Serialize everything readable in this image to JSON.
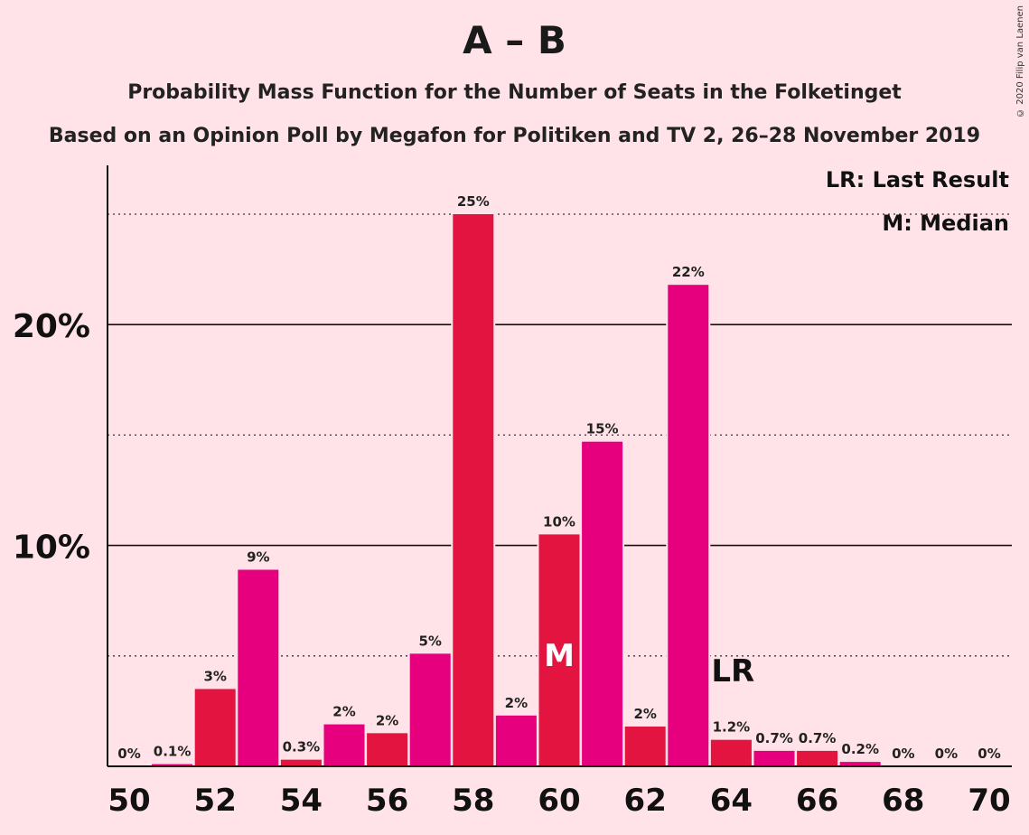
{
  "title": "A – B",
  "subtitle": "Probability Mass Function for the Number of Seats in the Folketinget",
  "subtitle2": "Based on an Opinion Poll by Megafon for Politiken and TV 2, 26–28 November 2019",
  "copyright": "© 2020 Filip van Laenen",
  "legend": {
    "last_result": "LR: Last Result",
    "median": "M: Median"
  },
  "colors": {
    "background": "#FFE3E8",
    "bar_a": "#E31440",
    "bar_b": "#E6007E",
    "text": "#222222"
  },
  "chart_data": {
    "type": "bar",
    "x": [
      50,
      51,
      52,
      53,
      54,
      55,
      56,
      57,
      58,
      59,
      60,
      61,
      62,
      63,
      64,
      65,
      66,
      67,
      68,
      69,
      70
    ],
    "values": [
      0,
      0.1,
      3.5,
      8.9,
      0.3,
      1.9,
      1.5,
      5.1,
      25.0,
      2.3,
      10.5,
      14.7,
      1.8,
      21.8,
      1.2,
      0.7,
      0.7,
      0.2,
      0,
      0,
      0
    ],
    "labels": [
      "0%",
      "0.1%",
      "3%",
      "9%",
      "0.3%",
      "2%",
      "2%",
      "5%",
      "25%",
      "2%",
      "10%",
      "15%",
      "2%",
      "22%",
      "1.2%",
      "0.7%",
      "0.7%",
      "0.2%",
      "0%",
      "0%",
      "0%"
    ],
    "x_tick_labels": [
      "50",
      "52",
      "54",
      "56",
      "58",
      "60",
      "62",
      "64",
      "66",
      "68",
      "70"
    ],
    "y_ticks": [
      {
        "value": 10,
        "label": "10%"
      },
      {
        "value": 20,
        "label": "20%"
      }
    ],
    "y_minor_gridlines": [
      5,
      15,
      25
    ],
    "ylim": [
      0,
      27.3
    ],
    "median_seat": 60,
    "median_marker": "M",
    "last_result_seat": 64,
    "last_result_marker": "LR"
  }
}
